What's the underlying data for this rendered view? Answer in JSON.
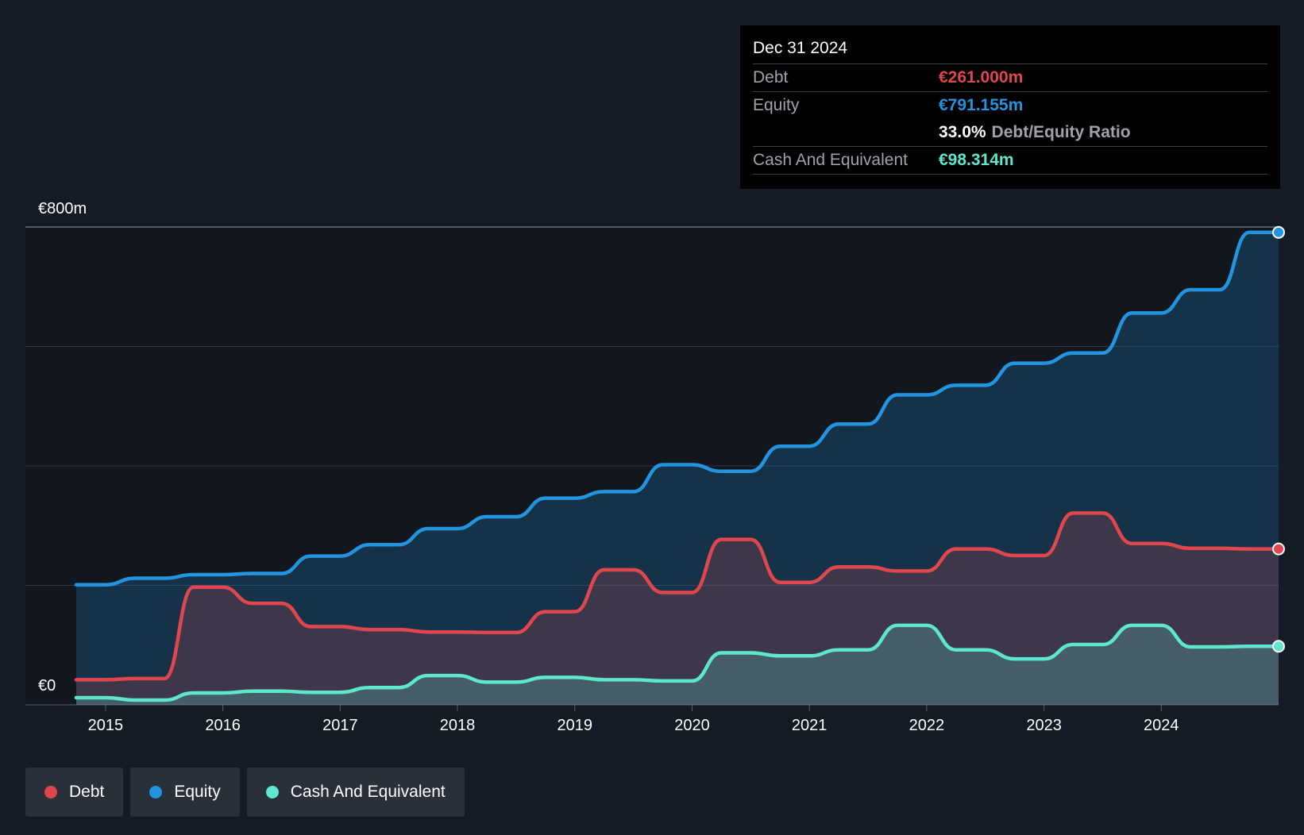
{
  "chart_data": {
    "type": "area",
    "currency_unit": "€m",
    "y_axis": {
      "top_label": "€800m",
      "bottom_label": "€0",
      "ylim": [
        0,
        800
      ],
      "gridlines": [
        0,
        200,
        400,
        600,
        800
      ]
    },
    "x_axis": {
      "xlim": [
        2014.75,
        2025.0
      ],
      "ticks": [
        "2015",
        "2016",
        "2017",
        "2018",
        "2019",
        "2020",
        "2021",
        "2022",
        "2023",
        "2024"
      ]
    },
    "series": [
      {
        "name": "Equity",
        "color": "#2394df",
        "x": [
          2014.75,
          2015.0,
          2015.25,
          2015.5,
          2015.75,
          2016.0,
          2016.25,
          2016.5,
          2016.75,
          2017.0,
          2017.25,
          2017.5,
          2017.75,
          2018.0,
          2018.25,
          2018.5,
          2018.75,
          2019.0,
          2019.25,
          2019.5,
          2019.75,
          2020.0,
          2020.25,
          2020.5,
          2020.75,
          2021.0,
          2021.25,
          2021.5,
          2021.75,
          2022.0,
          2022.25,
          2022.5,
          2022.75,
          2023.0,
          2023.25,
          2023.5,
          2023.75,
          2024.0,
          2024.25,
          2024.5,
          2024.75,
          2025.0
        ],
        "values": [
          201,
          201,
          212,
          212,
          218,
          218,
          220,
          220,
          249,
          249,
          268,
          268,
          295,
          295,
          315,
          315,
          346,
          346,
          357,
          357,
          402,
          402,
          391,
          391,
          433,
          433,
          470,
          470,
          519,
          519,
          535,
          535,
          572,
          572,
          589,
          589,
          656,
          656,
          695,
          695,
          791,
          791
        ]
      },
      {
        "name": "Debt",
        "color": "#e0464e",
        "x": [
          2014.75,
          2015.0,
          2015.25,
          2015.5,
          2015.75,
          2016.0,
          2016.25,
          2016.5,
          2016.75,
          2017.0,
          2017.25,
          2017.5,
          2017.75,
          2018.0,
          2018.25,
          2018.5,
          2018.75,
          2019.0,
          2019.25,
          2019.5,
          2019.75,
          2020.0,
          2020.25,
          2020.5,
          2020.75,
          2021.0,
          2021.25,
          2021.5,
          2021.75,
          2022.0,
          2022.25,
          2022.5,
          2022.75,
          2023.0,
          2023.25,
          2023.5,
          2023.75,
          2024.0,
          2024.25,
          2024.5,
          2024.75,
          2025.0
        ],
        "values": [
          42,
          42,
          44,
          44,
          197,
          197,
          170,
          170,
          131,
          131,
          126,
          126,
          122,
          122,
          121,
          121,
          156,
          156,
          226,
          226,
          188,
          188,
          277,
          277,
          205,
          205,
          231,
          231,
          224,
          224,
          261,
          261,
          250,
          250,
          321,
          321,
          270,
          270,
          262,
          262,
          261,
          261
        ]
      },
      {
        "name": "Cash And Equivalent",
        "color": "#5ee6cf",
        "x": [
          2014.75,
          2015.0,
          2015.25,
          2015.5,
          2015.75,
          2016.0,
          2016.25,
          2016.5,
          2016.75,
          2017.0,
          2017.25,
          2017.5,
          2017.75,
          2018.0,
          2018.25,
          2018.5,
          2018.75,
          2019.0,
          2019.25,
          2019.5,
          2019.75,
          2020.0,
          2020.25,
          2020.5,
          2020.75,
          2021.0,
          2021.25,
          2021.5,
          2021.75,
          2022.0,
          2022.25,
          2022.5,
          2022.75,
          2023.0,
          2023.25,
          2023.5,
          2023.75,
          2024.0,
          2024.25,
          2024.5,
          2024.75,
          2025.0
        ],
        "values": [
          12,
          12,
          8,
          8,
          20,
          20,
          23,
          23,
          21,
          21,
          29,
          29,
          49,
          49,
          38,
          38,
          46,
          46,
          42,
          42,
          40,
          40,
          87,
          87,
          82,
          82,
          92,
          92,
          133,
          133,
          92,
          92,
          77,
          77,
          101,
          101,
          133,
          133,
          97,
          97,
          98,
          98
        ]
      }
    ]
  },
  "tooltip": {
    "date": "Dec 31 2024",
    "debt_label": "Debt",
    "debt_value": "€261.000m",
    "debt_color": "#e0464e",
    "equity_label": "Equity",
    "equity_value": "€791.155m",
    "equity_color": "#2394df",
    "ratio_value": "33.0%",
    "ratio_label": "Debt/Equity Ratio",
    "cash_label": "Cash And Equivalent",
    "cash_value": "€98.314m",
    "cash_color": "#5ee6cf"
  },
  "legend": [
    {
      "label": "Debt",
      "color": "#e0464e"
    },
    {
      "label": "Equity",
      "color": "#2394df"
    },
    {
      "label": "Cash And Equivalent",
      "color": "#5ee6cf"
    }
  ]
}
